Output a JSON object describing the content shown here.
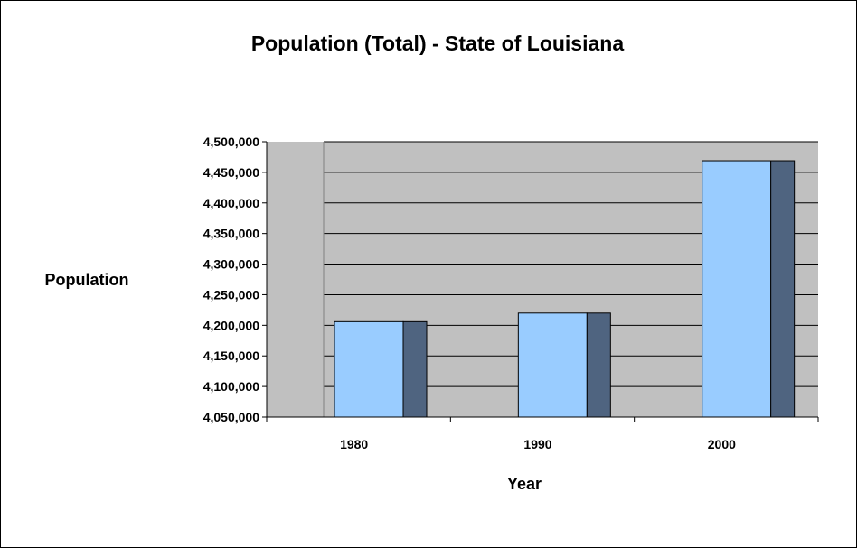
{
  "chart_data": {
    "type": "bar",
    "style": "3d-bar",
    "title": "Population (Total) - State of Louisiana",
    "xlabel": "Year",
    "ylabel": "Population",
    "categories": [
      "1980",
      "1990",
      "2000"
    ],
    "series": [
      {
        "values": [
          4205900,
          4219973,
          4468976
        ]
      }
    ],
    "ylim": [
      4050000,
      4500000
    ],
    "ytick_step": 50000,
    "yticks": [
      "4,500,000",
      "4,450,000",
      "4,400,000",
      "4,350,000",
      "4,300,000",
      "4,250,000",
      "4,200,000",
      "4,150,000",
      "4,100,000",
      "4,050,000"
    ],
    "grid": true,
    "legend": "none",
    "colors": {
      "plot_background": "#c0c0c0",
      "bar_front": "#99ccff",
      "bar_side": "#4f6480",
      "gridline": "#000000",
      "border": "#000000"
    }
  }
}
